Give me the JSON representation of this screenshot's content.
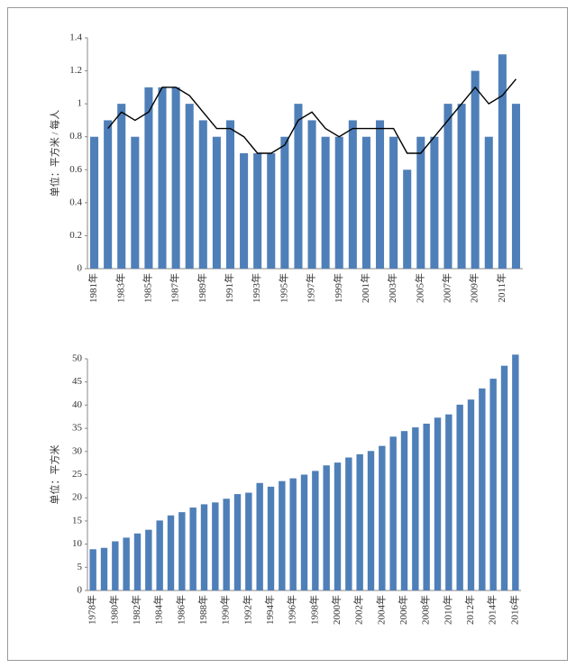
{
  "chart_data": [
    {
      "type": "bar",
      "y_label": "单位：平方米 / 每人",
      "categories": [
        "1981年",
        null,
        "1983年",
        null,
        "1985年",
        null,
        "1987年",
        null,
        "1989年",
        null,
        "1991年",
        null,
        "1993年",
        null,
        "1995年",
        null,
        "1997年",
        null,
        "1999年",
        null,
        "2001年",
        null,
        "2003年",
        null,
        "2005年",
        null,
        "2007年",
        null,
        "2009年",
        null,
        "2011年",
        null
      ],
      "series": [
        {
          "type": "bar",
          "color": "#4f7fb8",
          "values": [
            0.8,
            0.9,
            1.0,
            0.8,
            1.1,
            1.1,
            1.1,
            1.0,
            0.9,
            0.8,
            0.9,
            0.7,
            0.7,
            0.7,
            0.8,
            1.0,
            0.9,
            0.8,
            0.8,
            0.9,
            0.8,
            0.9,
            0.8,
            0.6,
            0.8,
            0.8,
            1.0,
            1.0,
            1.2,
            0.8,
            1.3,
            1.0
          ]
        },
        {
          "type": "line",
          "color": "#000000",
          "values": [
            null,
            0.85,
            0.95,
            0.9,
            0.95,
            1.1,
            1.1,
            1.05,
            0.95,
            0.85,
            0.85,
            0.8,
            0.7,
            0.7,
            0.75,
            0.9,
            0.95,
            0.85,
            0.8,
            0.85,
            0.85,
            0.85,
            0.85,
            0.7,
            0.7,
            0.8,
            0.9,
            1.0,
            1.1,
            1.0,
            1.05,
            1.15
          ]
        }
      ],
      "ylim": [
        0,
        1.4
      ],
      "yticks": [
        0,
        0.2,
        0.4,
        0.6,
        0.8,
        1,
        1.2,
        1.4
      ]
    },
    {
      "type": "bar",
      "y_label": "单位：平方米",
      "categories": [
        "1978年",
        null,
        "1980年",
        null,
        "1982年",
        null,
        "1984年",
        null,
        "1986年",
        null,
        "1988年",
        null,
        "1990年",
        null,
        "1992年",
        null,
        "1994年",
        null,
        "1996年",
        null,
        "1998年",
        null,
        "2000年",
        null,
        "2002年",
        null,
        "2004年",
        null,
        "2006年",
        null,
        "2008年",
        null,
        "2010年",
        null,
        "2012年",
        null,
        "2014年",
        null,
        "2016年"
      ],
      "series": [
        {
          "type": "bar",
          "color": "#4f7fb8",
          "values": [
            8.9,
            9.2,
            10.6,
            11.4,
            12.3,
            13.1,
            15.1,
            16.2,
            16.9,
            17.9,
            18.6,
            19.0,
            19.8,
            20.8,
            21.1,
            23.2,
            22.4,
            23.6,
            24.2,
            25.0,
            25.8,
            27.0,
            27.6,
            28.7,
            29.4,
            30.1,
            31.2,
            33.2,
            34.4,
            35.2,
            36.0,
            37.3,
            38.0,
            40.1,
            41.2,
            43.6,
            45.7,
            48.5,
            50.9
          ]
        }
      ],
      "ylim": [
        0,
        50
      ],
      "yticks": [
        0,
        5,
        10,
        15,
        20,
        25,
        30,
        35,
        40,
        45,
        50
      ]
    }
  ]
}
